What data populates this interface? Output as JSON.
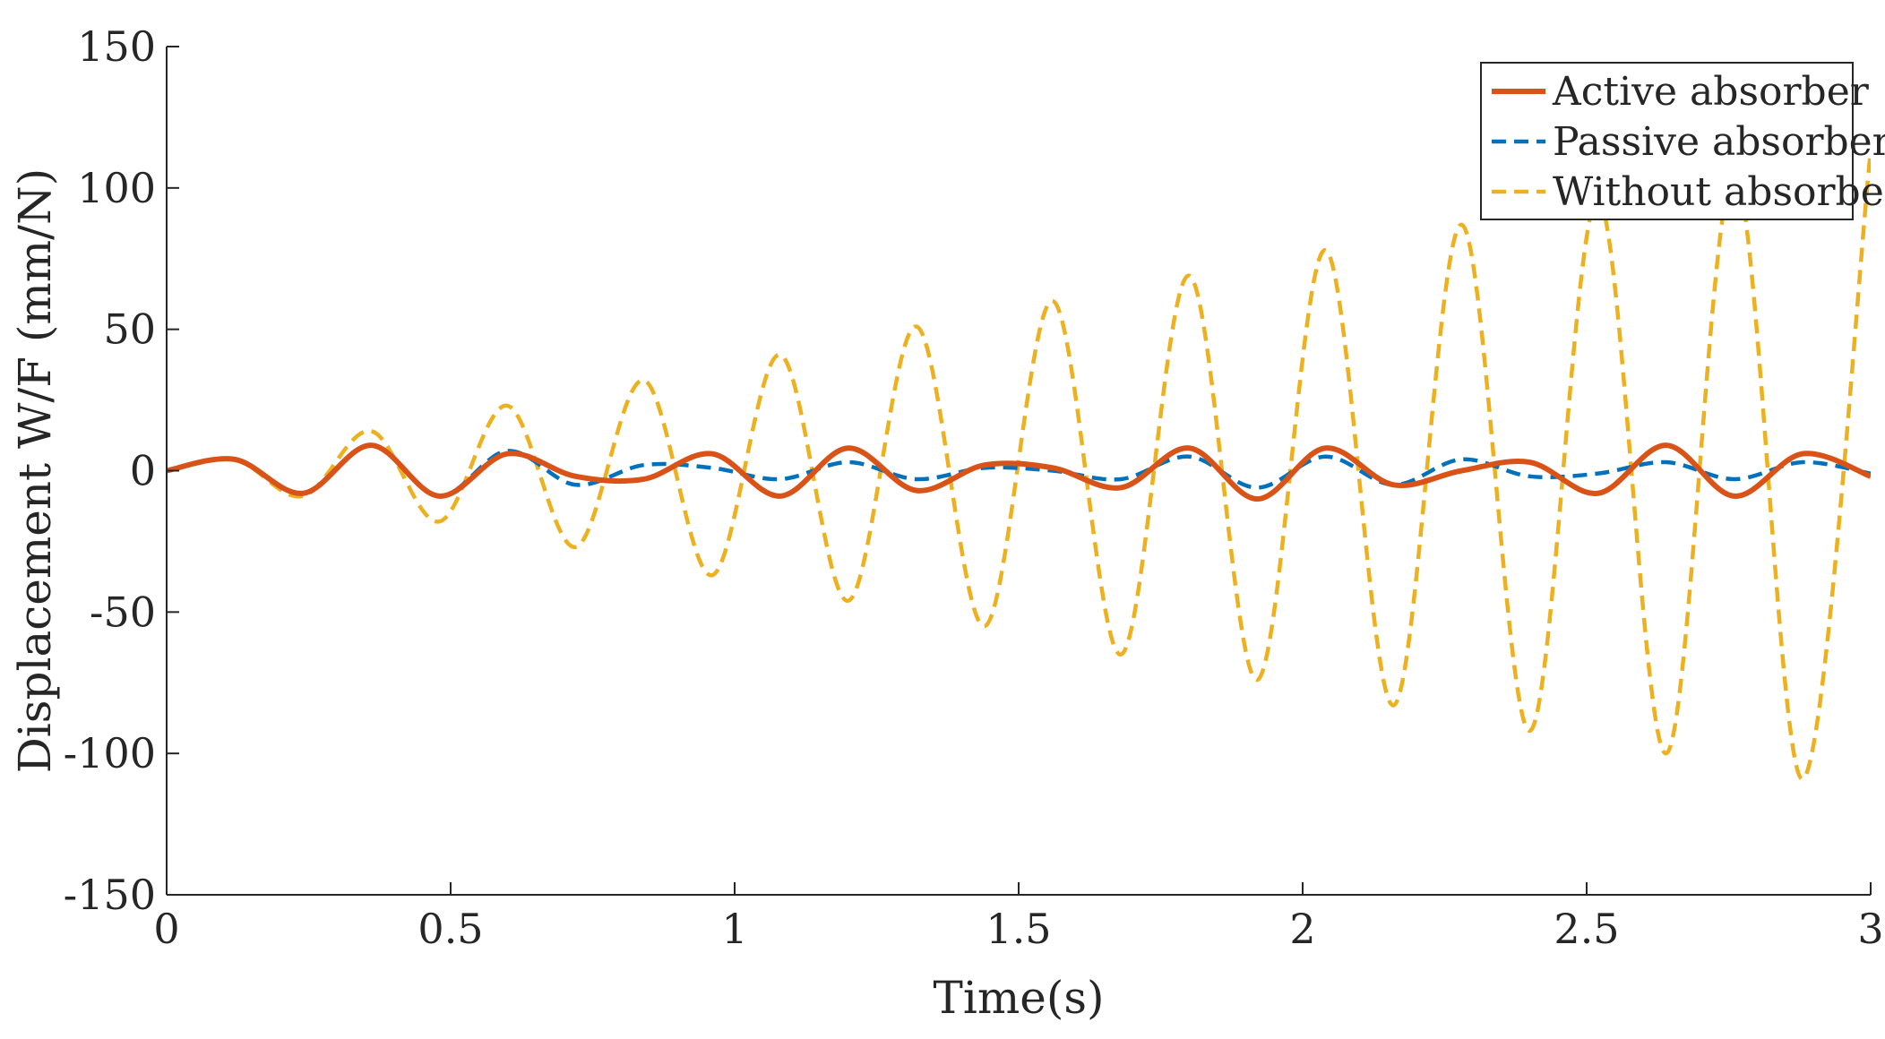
{
  "chart_data": {
    "type": "line",
    "title": "",
    "xlabel": "Time(s)",
    "ylabel": "Displacement W/F (mm/N)",
    "xlim": [
      0,
      3
    ],
    "ylim": [
      -150,
      150
    ],
    "grid": false,
    "legend_position": "top-right",
    "x_ticks": [
      0,
      0.5,
      1,
      1.5,
      2,
      2.5,
      3
    ],
    "x_tick_labels": [
      "0",
      "0.5",
      "1",
      "1.5",
      "2",
      "2.5",
      "3"
    ],
    "y_ticks": [
      -150,
      -100,
      -50,
      0,
      50,
      100,
      150
    ],
    "y_tick_labels": [
      "-150",
      "-100",
      "-50",
      "0",
      "50",
      "100",
      "150"
    ],
    "series": [
      {
        "name": "Active absorber",
        "color": "#D95319",
        "style": "solid",
        "x": [
          0,
          0.12,
          0.24,
          0.36,
          0.48,
          0.6,
          0.72,
          0.84,
          0.96,
          1.08,
          1.2,
          1.32,
          1.44,
          1.56,
          1.68,
          1.8,
          1.92,
          2.04,
          2.16,
          2.28,
          2.4,
          2.52,
          2.64,
          2.76,
          2.88,
          3.0
        ],
        "y": [
          0,
          4,
          -8,
          9,
          -9,
          6,
          -2,
          -3,
          6,
          -9,
          8,
          -7,
          2,
          1,
          -6,
          8,
          -10,
          8,
          -5,
          0,
          3,
          -8,
          9,
          -9,
          6,
          -2
        ]
      },
      {
        "name": "Passive absorber",
        "color": "#0072BD",
        "style": "dashed",
        "x": [
          0,
          0.12,
          0.24,
          0.36,
          0.48,
          0.6,
          0.72,
          0.84,
          0.96,
          1.08,
          1.2,
          1.32,
          1.44,
          1.56,
          1.68,
          1.8,
          1.92,
          2.04,
          2.16,
          2.28,
          2.4,
          2.52,
          2.64,
          2.76,
          2.88,
          3.0
        ],
        "y": [
          0,
          4,
          -8,
          9,
          -9,
          7,
          -5,
          2,
          1,
          -3,
          3,
          -3,
          1,
          0,
          -3,
          5,
          -6,
          5,
          -5,
          4,
          -2,
          -1,
          3,
          -3,
          3,
          -1
        ]
      },
      {
        "name": "Without absorber",
        "color": "#EDB120",
        "style": "dashed",
        "x": [
          0,
          0.12,
          0.24,
          0.36,
          0.48,
          0.6,
          0.72,
          0.84,
          0.96,
          1.08,
          1.2,
          1.32,
          1.44,
          1.56,
          1.68,
          1.8,
          1.92,
          2.04,
          2.16,
          2.28,
          2.4,
          2.52,
          2.64,
          2.76,
          2.88,
          3.0
        ],
        "y": [
          0,
          4,
          -9,
          14,
          -18,
          23,
          -27,
          32,
          -37,
          41,
          -46,
          51,
          -55,
          60,
          -65,
          69,
          -74,
          78,
          -83,
          87,
          -92,
          96,
          -100,
          105,
          -109,
          113
        ]
      }
    ]
  }
}
